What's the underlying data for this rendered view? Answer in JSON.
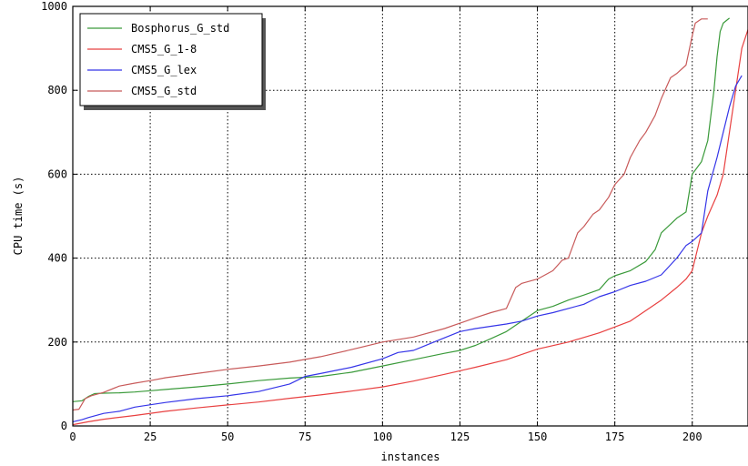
{
  "chart_data": {
    "type": "line",
    "xlabel": "instances",
    "ylabel": "CPU time (s)",
    "xlim": [
      0,
      218
    ],
    "ylim": [
      0,
      1000
    ],
    "xticks": [
      0,
      25,
      50,
      75,
      100,
      125,
      150,
      175,
      200
    ],
    "yticks": [
      0,
      200,
      400,
      600,
      800,
      1000
    ],
    "grid": true,
    "legend_position": "top-left",
    "series": [
      {
        "name": "Bosphorus_G_std",
        "color": "#3a9a3a",
        "points": [
          [
            0,
            58
          ],
          [
            3,
            60
          ],
          [
            5,
            70
          ],
          [
            7,
            77
          ],
          [
            10,
            78
          ],
          [
            15,
            79
          ],
          [
            20,
            81
          ],
          [
            25,
            84
          ],
          [
            30,
            87
          ],
          [
            40,
            93
          ],
          [
            50,
            100
          ],
          [
            60,
            108
          ],
          [
            70,
            114
          ],
          [
            80,
            118
          ],
          [
            90,
            128
          ],
          [
            100,
            143
          ],
          [
            110,
            158
          ],
          [
            120,
            173
          ],
          [
            125,
            180
          ],
          [
            130,
            192
          ],
          [
            135,
            208
          ],
          [
            140,
            225
          ],
          [
            145,
            250
          ],
          [
            150,
            275
          ],
          [
            155,
            285
          ],
          [
            160,
            300
          ],
          [
            165,
            312
          ],
          [
            170,
            325
          ],
          [
            173,
            350
          ],
          [
            175,
            358
          ],
          [
            180,
            370
          ],
          [
            185,
            392
          ],
          [
            188,
            420
          ],
          [
            190,
            460
          ],
          [
            195,
            495
          ],
          [
            198,
            510
          ],
          [
            200,
            600
          ],
          [
            203,
            630
          ],
          [
            205,
            680
          ],
          [
            206,
            740
          ],
          [
            207,
            800
          ],
          [
            208,
            880
          ],
          [
            209,
            940
          ],
          [
            210,
            960
          ],
          [
            212,
            972
          ]
        ]
      },
      {
        "name": "CMS5_G_1-8",
        "color": "#e84040",
        "points": [
          [
            0,
            3
          ],
          [
            5,
            10
          ],
          [
            10,
            16
          ],
          [
            20,
            25
          ],
          [
            30,
            35
          ],
          [
            40,
            43
          ],
          [
            50,
            50
          ],
          [
            60,
            57
          ],
          [
            70,
            66
          ],
          [
            80,
            74
          ],
          [
            90,
            83
          ],
          [
            100,
            93
          ],
          [
            110,
            107
          ],
          [
            120,
            123
          ],
          [
            130,
            140
          ],
          [
            140,
            158
          ],
          [
            150,
            183
          ],
          [
            160,
            200
          ],
          [
            170,
            222
          ],
          [
            180,
            250
          ],
          [
            185,
            275
          ],
          [
            190,
            300
          ],
          [
            195,
            330
          ],
          [
            198,
            350
          ],
          [
            200,
            370
          ],
          [
            201,
            400
          ],
          [
            203,
            460
          ],
          [
            205,
            500
          ],
          [
            208,
            550
          ],
          [
            210,
            600
          ],
          [
            212,
            700
          ],
          [
            214,
            800
          ],
          [
            216,
            900
          ],
          [
            218,
            945
          ]
        ]
      },
      {
        "name": "CMS5_G_lex",
        "color": "#3535e8",
        "points": [
          [
            0,
            10
          ],
          [
            3,
            15
          ],
          [
            5,
            20
          ],
          [
            10,
            30
          ],
          [
            15,
            35
          ],
          [
            20,
            45
          ],
          [
            30,
            56
          ],
          [
            40,
            65
          ],
          [
            50,
            72
          ],
          [
            60,
            82
          ],
          [
            70,
            100
          ],
          [
            75,
            118
          ],
          [
            80,
            125
          ],
          [
            90,
            140
          ],
          [
            100,
            160
          ],
          [
            105,
            175
          ],
          [
            110,
            180
          ],
          [
            115,
            195
          ],
          [
            120,
            210
          ],
          [
            125,
            225
          ],
          [
            130,
            232
          ],
          [
            140,
            243
          ],
          [
            145,
            250
          ],
          [
            150,
            262
          ],
          [
            155,
            270
          ],
          [
            160,
            280
          ],
          [
            165,
            290
          ],
          [
            170,
            308
          ],
          [
            175,
            320
          ],
          [
            180,
            335
          ],
          [
            185,
            345
          ],
          [
            190,
            360
          ],
          [
            195,
            400
          ],
          [
            198,
            430
          ],
          [
            200,
            440
          ],
          [
            203,
            460
          ],
          [
            205,
            560
          ],
          [
            208,
            640
          ],
          [
            210,
            700
          ],
          [
            212,
            760
          ],
          [
            214,
            810
          ],
          [
            216,
            835
          ]
        ]
      },
      {
        "name": "CMS5_G_std",
        "color": "#c85a5a",
        "points": [
          [
            0,
            38
          ],
          [
            2,
            40
          ],
          [
            4,
            65
          ],
          [
            6,
            72
          ],
          [
            10,
            80
          ],
          [
            15,
            95
          ],
          [
            20,
            102
          ],
          [
            25,
            108
          ],
          [
            30,
            115
          ],
          [
            40,
            125
          ],
          [
            50,
            135
          ],
          [
            60,
            143
          ],
          [
            70,
            152
          ],
          [
            80,
            165
          ],
          [
            90,
            182
          ],
          [
            100,
            200
          ],
          [
            110,
            212
          ],
          [
            120,
            232
          ],
          [
            125,
            245
          ],
          [
            130,
            258
          ],
          [
            135,
            270
          ],
          [
            140,
            280
          ],
          [
            143,
            330
          ],
          [
            145,
            340
          ],
          [
            150,
            350
          ],
          [
            155,
            370
          ],
          [
            158,
            395
          ],
          [
            160,
            400
          ],
          [
            163,
            460
          ],
          [
            165,
            475
          ],
          [
            168,
            505
          ],
          [
            170,
            515
          ],
          [
            173,
            545
          ],
          [
            175,
            575
          ],
          [
            178,
            600
          ],
          [
            180,
            640
          ],
          [
            183,
            680
          ],
          [
            185,
            700
          ],
          [
            188,
            740
          ],
          [
            190,
            780
          ],
          [
            193,
            830
          ],
          [
            195,
            840
          ],
          [
            198,
            860
          ],
          [
            200,
            930
          ],
          [
            201,
            960
          ],
          [
            203,
            970
          ],
          [
            205,
            970
          ]
        ]
      }
    ]
  }
}
